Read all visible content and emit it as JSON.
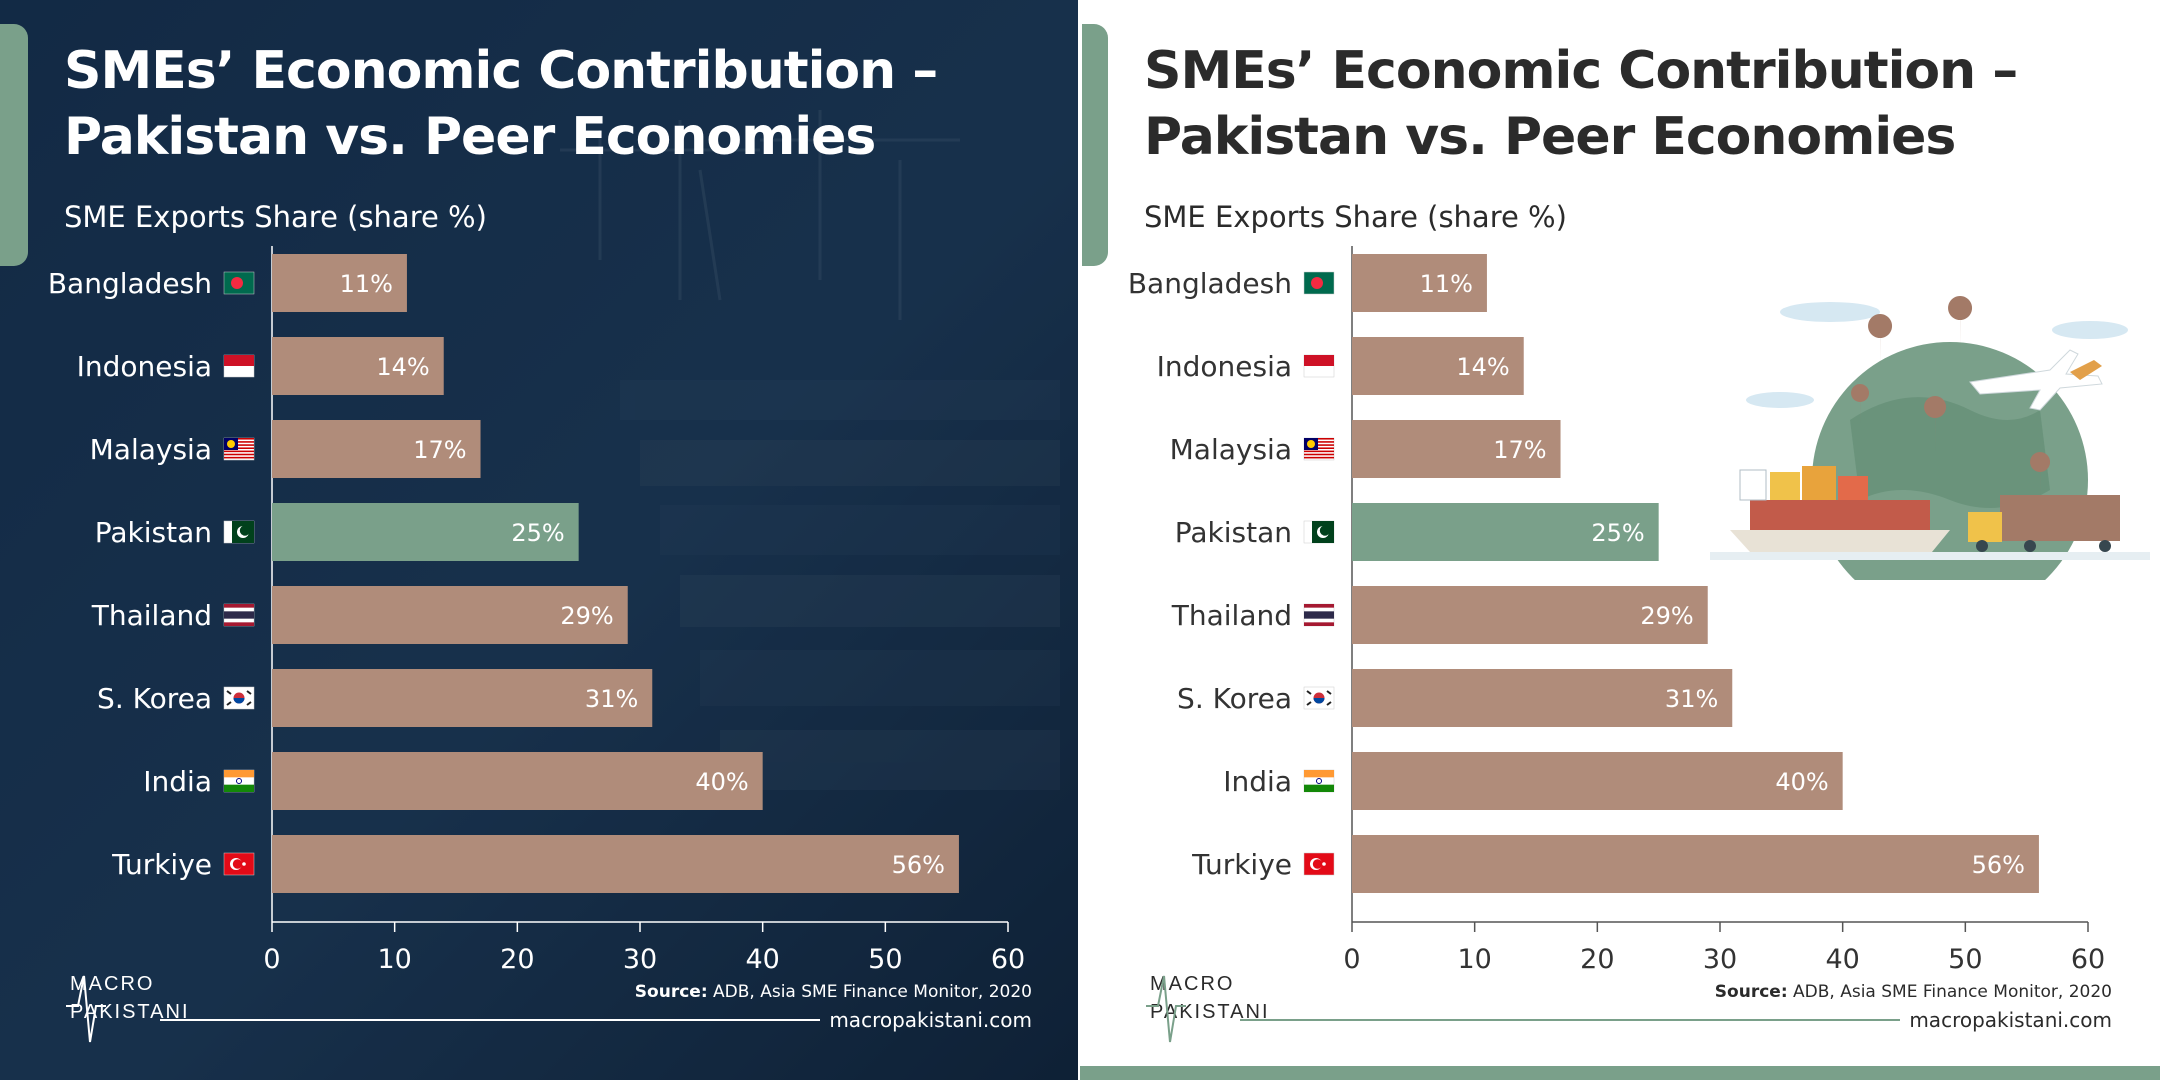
{
  "title": "SMEs’ Economic Contribution – Pakistan vs. Peer Economies",
  "subtitle": "SME Exports Share (share %)",
  "source_label": "Source:",
  "source_text": "ADB, Asia SME Finance Monitor, 2020",
  "website": "macropakistani.com",
  "logo": {
    "line1": "MACRO",
    "line2": "PAKISTANI"
  },
  "colors": {
    "bar": "#b08c7a",
    "highlight": "#7aa08a",
    "dark_bg": "#12263d",
    "accent": "#7aa08a"
  },
  "chart_data": {
    "type": "bar",
    "orientation": "horizontal",
    "categories": [
      "Bangladesh",
      "Indonesia",
      "Malaysia",
      "Pakistan",
      "Thailand",
      "S. Korea",
      "India",
      "Turkiye"
    ],
    "values": [
      11,
      14,
      17,
      25,
      29,
      31,
      40,
      56
    ],
    "value_labels": [
      "11%",
      "14%",
      "17%",
      "25%",
      "29%",
      "31%",
      "40%",
      "56%"
    ],
    "highlight_category": "Pakistan",
    "flag_icons": [
      "bangladesh-flag-icon",
      "indonesia-flag-icon",
      "malaysia-flag-icon",
      "pakistan-flag-icon",
      "thailand-flag-icon",
      "south-korea-flag-icon",
      "india-flag-icon",
      "turkiye-flag-icon"
    ],
    "xlim": [
      0,
      60
    ],
    "xticks": [
      0,
      10,
      20,
      30,
      40,
      50,
      60
    ],
    "grid": false
  }
}
